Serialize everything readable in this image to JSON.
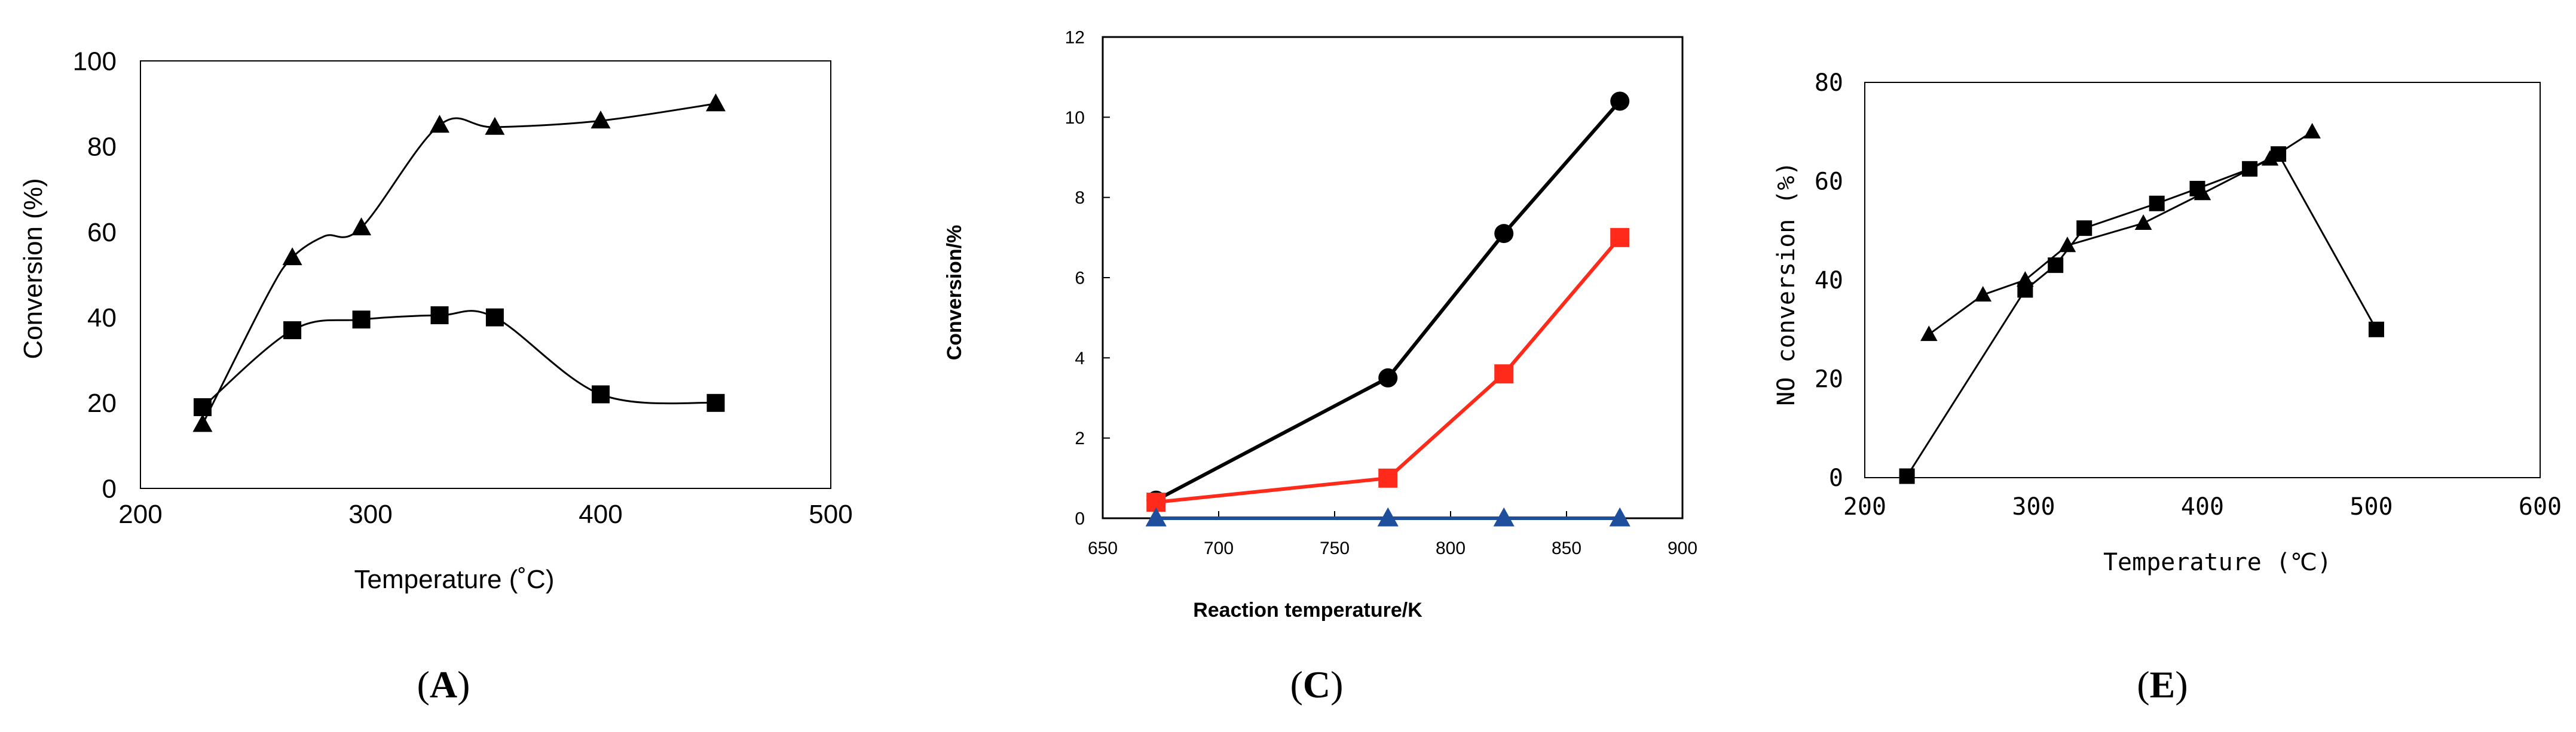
{
  "chart_data": [
    {
      "type": "line",
      "panel_label": "A",
      "title": "",
      "xlabel": "Temperature (˚C)",
      "ylabel": "Conversion  (%)",
      "xlim": [
        200,
        500
      ],
      "ylim": [
        0,
        100
      ],
      "xticks": [
        "200",
        "300",
        "400",
        "500"
      ],
      "yticks": [
        "0",
        "20",
        "40",
        "60",
        "80",
        "100"
      ],
      "grid": false,
      "series": [
        {
          "name": "triangles",
          "marker": "triangle",
          "color": "#000000",
          "x": [
            227,
            255,
            266,
            280,
            296,
            330,
            354,
            400,
            450
          ],
          "y": [
            15,
            45,
            54,
            59,
            61,
            85,
            84.5,
            86,
            90
          ]
        },
        {
          "name": "squares",
          "marker": "square",
          "color": "#000000",
          "x": [
            227,
            266,
            296,
            330,
            354,
            400,
            450
          ],
          "y": [
            19,
            37,
            39.5,
            40.5,
            40,
            22,
            20
          ]
        }
      ]
    },
    {
      "type": "line",
      "panel_label": "C",
      "title": "",
      "xlabel": "Reaction temperature/K",
      "ylabel": "Conversion/%",
      "xlim": [
        650,
        900
      ],
      "ylim": [
        0,
        12
      ],
      "xticks": [
        "650",
        "700",
        "750",
        "800",
        "850",
        "900"
      ],
      "yticks": [
        "0",
        "2",
        "4",
        "6",
        "8",
        "10",
        "12"
      ],
      "grid": false,
      "series": [
        {
          "name": "circles",
          "marker": "circle",
          "color": "#000000",
          "x": [
            673,
            773,
            823,
            873
          ],
          "y": [
            0.45,
            3.5,
            7.1,
            10.4
          ]
        },
        {
          "name": "squares",
          "marker": "square",
          "color": "#ff2a1a",
          "x": [
            673,
            773,
            823,
            873
          ],
          "y": [
            0.4,
            1.0,
            3.6,
            7.0
          ]
        },
        {
          "name": "triangles",
          "marker": "triangle",
          "color": "#1f4e9c",
          "x": [
            673,
            773,
            823,
            873
          ],
          "y": [
            0,
            0,
            0,
            0
          ]
        }
      ]
    },
    {
      "type": "line",
      "panel_label": "E",
      "title": "",
      "xlabel": "Temperature (℃)",
      "ylabel": "NO conversion (%)",
      "xlim": [
        200,
        600
      ],
      "ylim": [
        0,
        80
      ],
      "xticks": [
        "200",
        "300",
        "400",
        "500",
        "600"
      ],
      "yticks": [
        "0",
        "20",
        "40",
        "60",
        "80"
      ],
      "grid": false,
      "series": [
        {
          "name": "triangles",
          "marker": "triangle",
          "color": "#000000",
          "x": [
            238,
            270,
            295,
            320,
            365,
            400,
            440,
            465
          ],
          "y": [
            29,
            37,
            40,
            47,
            51.5,
            57.5,
            64.5,
            70
          ]
        },
        {
          "name": "squares",
          "marker": "square",
          "color": "#000000",
          "x": [
            225,
            295,
            313,
            330,
            373,
            397,
            428,
            445,
            503
          ],
          "y": [
            0.3,
            38,
            43,
            50.5,
            55.5,
            58.5,
            62.5,
            65.5,
            30
          ]
        }
      ]
    }
  ]
}
